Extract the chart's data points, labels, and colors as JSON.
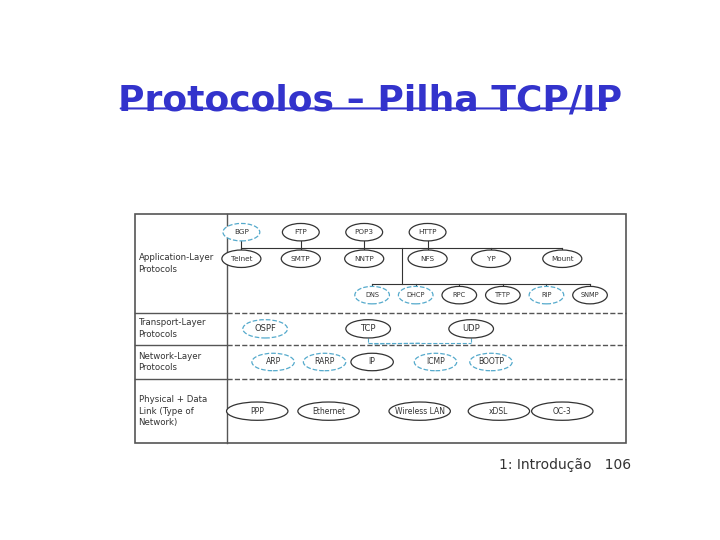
{
  "title": "Protocolos – Pilha TCP/IP",
  "title_color": "#3333cc",
  "title_fontsize": 26,
  "bg_color": "#ffffff",
  "footer_text": "1: Introdução   106",
  "footer_fontsize": 10,
  "app_row1": [
    "BGP",
    "FTP",
    "POP3",
    "HTTP"
  ],
  "app_row1_dashed": [
    true,
    false,
    false,
    false
  ],
  "app_row2": [
    "Telnet",
    "SMTP",
    "NNTP",
    "NFS",
    "YP",
    "Mount"
  ],
  "app_row2_dashed": [
    false,
    false,
    false,
    false,
    false,
    false
  ],
  "app_row3": [
    "DNS",
    "DHCP",
    "RPC",
    "TFTP",
    "RIP",
    "SNMP"
  ],
  "app_row3_dashed": [
    true,
    true,
    false,
    false,
    true,
    false
  ],
  "transport_nodes": [
    "OSPF",
    "TCP",
    "UDP"
  ],
  "transport_dashed": [
    true,
    false,
    false
  ],
  "network_nodes": [
    "ARP",
    "RARP",
    "IP",
    "ICMP",
    "BOOTP"
  ],
  "network_dashed": [
    true,
    true,
    false,
    true,
    true
  ],
  "physical_nodes": [
    "PPP",
    "Ethernet",
    "Wireless LAN",
    "xDSL",
    "OC-3"
  ],
  "physical_dashed": [
    false,
    false,
    false,
    false,
    false
  ],
  "solid_color": "#333333",
  "dashed_color": "#55aacc",
  "line_color": "#333333",
  "dashed_line_color": "#55aacc"
}
